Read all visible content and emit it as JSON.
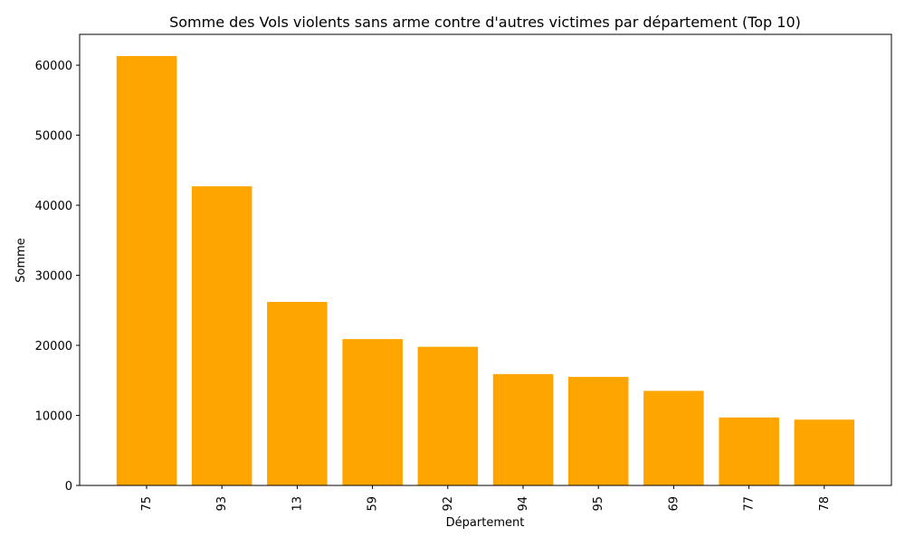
{
  "chart_data": {
    "type": "bar",
    "title": "Somme des Vols violents sans arme contre d'autres victimes par département (Top 10)",
    "xlabel": "Département",
    "ylabel": "Somme",
    "categories": [
      "75",
      "93",
      "13",
      "59",
      "92",
      "94",
      "95",
      "69",
      "77",
      "78"
    ],
    "values": [
      61300,
      42700,
      26200,
      20900,
      19800,
      15900,
      15500,
      13500,
      9700,
      9400
    ],
    "ylim": [
      0,
      64400
    ],
    "yticks": [
      0,
      10000,
      20000,
      30000,
      40000,
      50000,
      60000
    ],
    "bar_color": "#FFA500",
    "grid": false,
    "legend": "none",
    "xtick_rotation": "vertical"
  }
}
